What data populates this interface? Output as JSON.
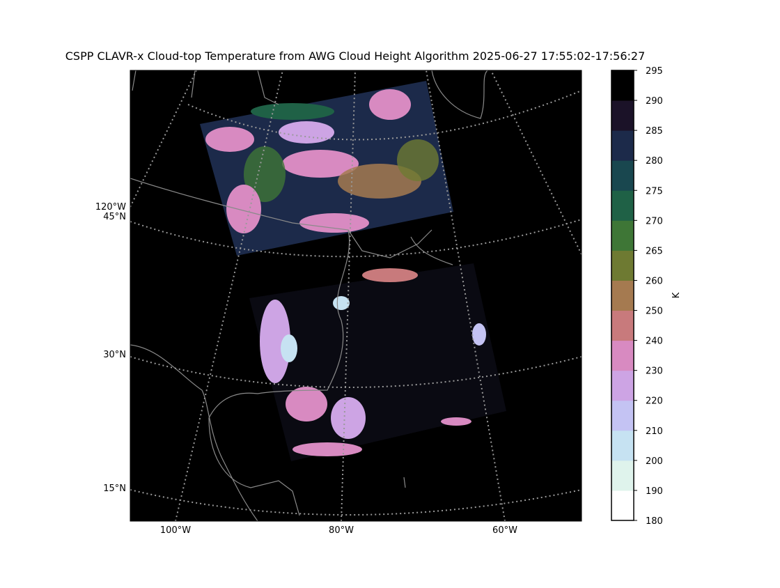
{
  "title": "CSPP CLAVR-x Cloud-top Temperature from AWG Cloud Height Algorithm 2025-06-27 17:55:02-17:56:27",
  "map": {
    "lat_labels": [
      "45°N",
      "30°N",
      "15°N"
    ],
    "lon_labels": [
      "100°W",
      "80°W",
      "60°W"
    ],
    "left_lon_label": "120°W"
  },
  "colorbar": {
    "label": "K",
    "boundaries": [
      180,
      190,
      200,
      210,
      220,
      230,
      240,
      250,
      260,
      265,
      270,
      275,
      280,
      285,
      290,
      295
    ],
    "colors": [
      "#ffffff",
      "#dff3ec",
      "#c6e2f2",
      "#c4c3f3",
      "#cda4e4",
      "#d88ac1",
      "#c87a7c",
      "#a57a50",
      "#6e7a32",
      "#3e7636",
      "#1f6146",
      "#19474f",
      "#1c2a4a",
      "#1b1228",
      "#000000"
    ]
  }
}
